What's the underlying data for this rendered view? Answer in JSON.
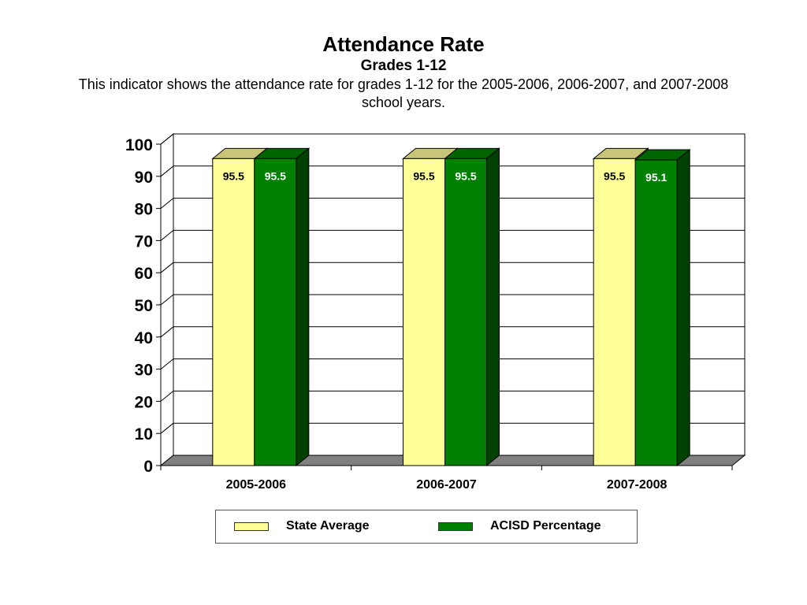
{
  "colors": {
    "state_front": "#FFFF99",
    "state_top": "#C8C478",
    "state_side": "#B5B26A",
    "acisd_front": "#008000",
    "acisd_top": "#006400",
    "acisd_side": "#004000",
    "floor": "#808080"
  },
  "chart_data": {
    "type": "bar",
    "title": "Attendance Rate",
    "subtitle": "Grades 1-12",
    "description": "This indicator shows the attendance rate for grades 1-12 for the 2005-2006, 2006-2007, and 2007-2008 school years.",
    "categories": [
      "2005-2006",
      "2006-2007",
      "2007-2008"
    ],
    "series": [
      {
        "name": "State Average",
        "values": [
          95.5,
          95.5,
          95.5
        ]
      },
      {
        "name": "ACISD Percentage",
        "values": [
          95.5,
          95.5,
          95.1
        ]
      }
    ],
    "ylim": [
      0,
      100
    ],
    "yticks": [
      "0",
      "10",
      "20",
      "30",
      "40",
      "50",
      "60",
      "70",
      "80",
      "90",
      "100"
    ],
    "grid": true,
    "legend_position": "bottom"
  }
}
